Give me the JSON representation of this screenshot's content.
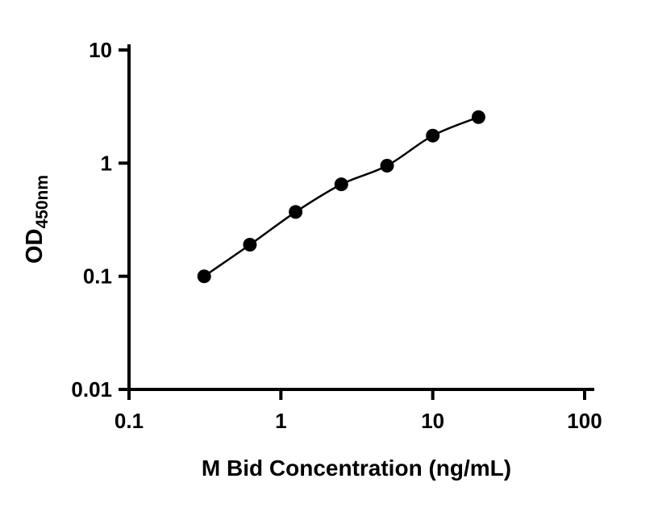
{
  "chart_data": {
    "type": "scatter",
    "title": "",
    "xlabel": "M Bid Concentration (ng/mL)",
    "ylabel_main": "OD",
    "ylabel_sub": "450nm",
    "x_scale": "log",
    "y_scale": "log",
    "xlim": [
      0.1,
      100
    ],
    "ylim": [
      0.01,
      10
    ],
    "x_ticks": [
      0.1,
      1,
      10,
      100
    ],
    "x_tick_labels": [
      "0.1",
      "1",
      "10",
      "100"
    ],
    "y_ticks": [
      0.01,
      0.1,
      1,
      10
    ],
    "y_tick_labels": [
      "0.01",
      "0.1",
      "1",
      "10"
    ],
    "grid": false,
    "legend": "none",
    "points": {
      "x": [
        0.3125,
        0.625,
        1.25,
        2.5,
        5,
        10,
        20
      ],
      "y": [
        0.1,
        0.19,
        0.37,
        0.65,
        0.95,
        1.75,
        2.55
      ]
    },
    "marker": {
      "shape": "circle",
      "radius": 8.5
    },
    "colors": {
      "axis": "#000000",
      "marker": "#000000",
      "line": "#000000",
      "background": "#ffffff"
    }
  }
}
